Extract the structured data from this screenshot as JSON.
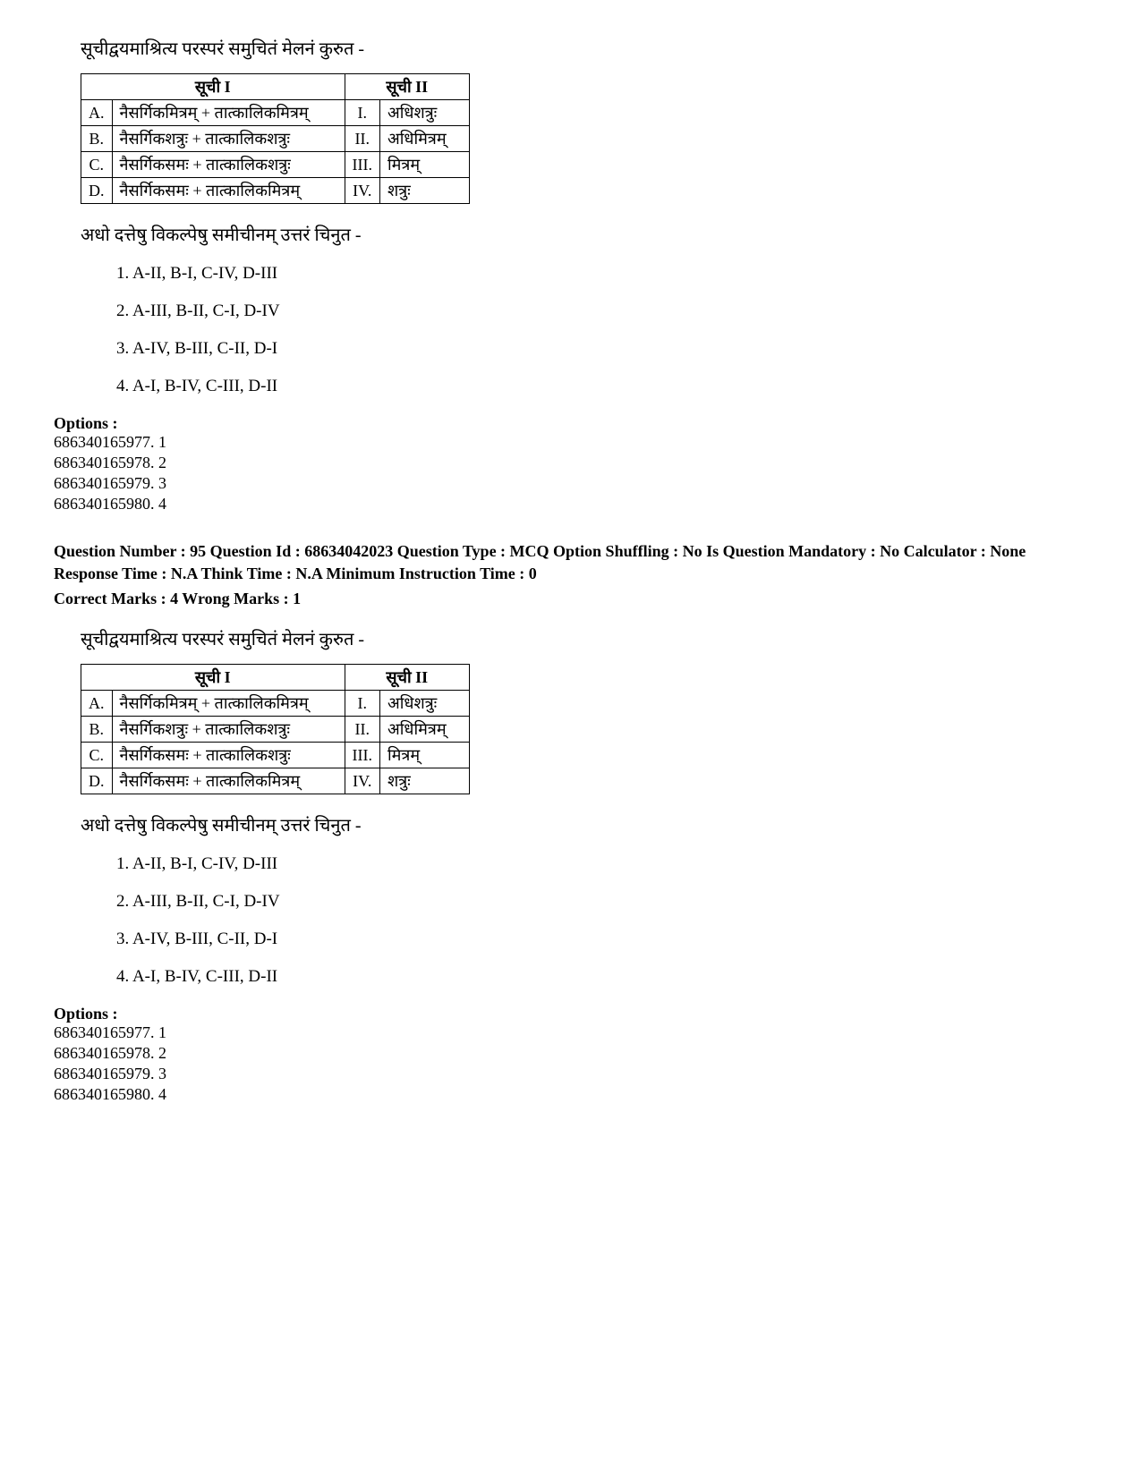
{
  "question1": {
    "prompt": "सूचीद्वयमाश्रित्य परस्परं समुचितं मेलनं कुरुत -",
    "table": {
      "header_list1": "सूची I",
      "header_list2": "सूची II",
      "rows": [
        {
          "letter": "A.",
          "item1": "नैसर्गिकमित्रम् + तात्कालिकमित्रम्",
          "roman": "I.",
          "item2": "अधिशत्रुः"
        },
        {
          "letter": "B.",
          "item1": "नैसर्गिकशत्रुः + तात्कालिकशत्रुः",
          "roman": "II.",
          "item2": "अधिमित्रम्"
        },
        {
          "letter": "C.",
          "item1": "नैसर्गिकसमः + तात्कालिकशत्रुः",
          "roman": "III.",
          "item2": "मित्रम्"
        },
        {
          "letter": "D.",
          "item1": "नैसर्गिकसमः + तात्कालिकमित्रम्",
          "roman": "IV.",
          "item2": "शत्रुः"
        }
      ]
    },
    "instruction": "अधो दत्तेषु विकल्पेषु समीचीनम् उत्तरं चिनुत -",
    "answers": [
      "1. A-II, B-I, C-IV, D-III",
      "2. A-III, B-II, C-I, D-IV",
      "3. A-IV, B-III, C-II, D-I",
      "4. A-I, B-IV, C-III, D-II"
    ],
    "options_heading": "Options :",
    "options": [
      "686340165977. 1",
      "686340165978. 2",
      "686340165979. 3",
      "686340165980. 4"
    ]
  },
  "meta": {
    "line1": "Question Number : 95 Question Id : 68634042023 Question Type : MCQ Option Shuffling : No Is Question Mandatory : No Calculator : None Response Time : N.A Think Time : N.A Minimum Instruction Time : 0",
    "marks": "Correct Marks : 4 Wrong Marks : 1"
  },
  "question2": {
    "prompt": "सूचीद्वयमाश्रित्य परस्परं समुचितं मेलनं कुरुत -",
    "table": {
      "header_list1": "सूची I",
      "header_list2": "सूची II",
      "rows": [
        {
          "letter": "A.",
          "item1": "नैसर्गिकमित्रम् + तात्कालिकमित्रम्",
          "roman": "I.",
          "item2": "अधिशत्रुः"
        },
        {
          "letter": "B.",
          "item1": "नैसर्गिकशत्रुः + तात्कालिकशत्रुः",
          "roman": "II.",
          "item2": "अधिमित्रम्"
        },
        {
          "letter": "C.",
          "item1": "नैसर्गिकसमः + तात्कालिकशत्रुः",
          "roman": "III.",
          "item2": "मित्रम्"
        },
        {
          "letter": "D.",
          "item1": "नैसर्गिकसमः + तात्कालिकमित्रम्",
          "roman": "IV.",
          "item2": "शत्रुः"
        }
      ]
    },
    "instruction": "अधो दत्तेषु विकल्पेषु समीचीनम् उत्तरं चिनुत -",
    "answers": [
      "1. A-II, B-I, C-IV, D-III",
      "2. A-III, B-II, C-I, D-IV",
      "3. A-IV, B-III, C-II, D-I",
      "4. A-I, B-IV, C-III, D-II"
    ],
    "options_heading": "Options :",
    "options": [
      "686340165977. 1",
      "686340165978. 2",
      "686340165979. 3",
      "686340165980. 4"
    ]
  }
}
